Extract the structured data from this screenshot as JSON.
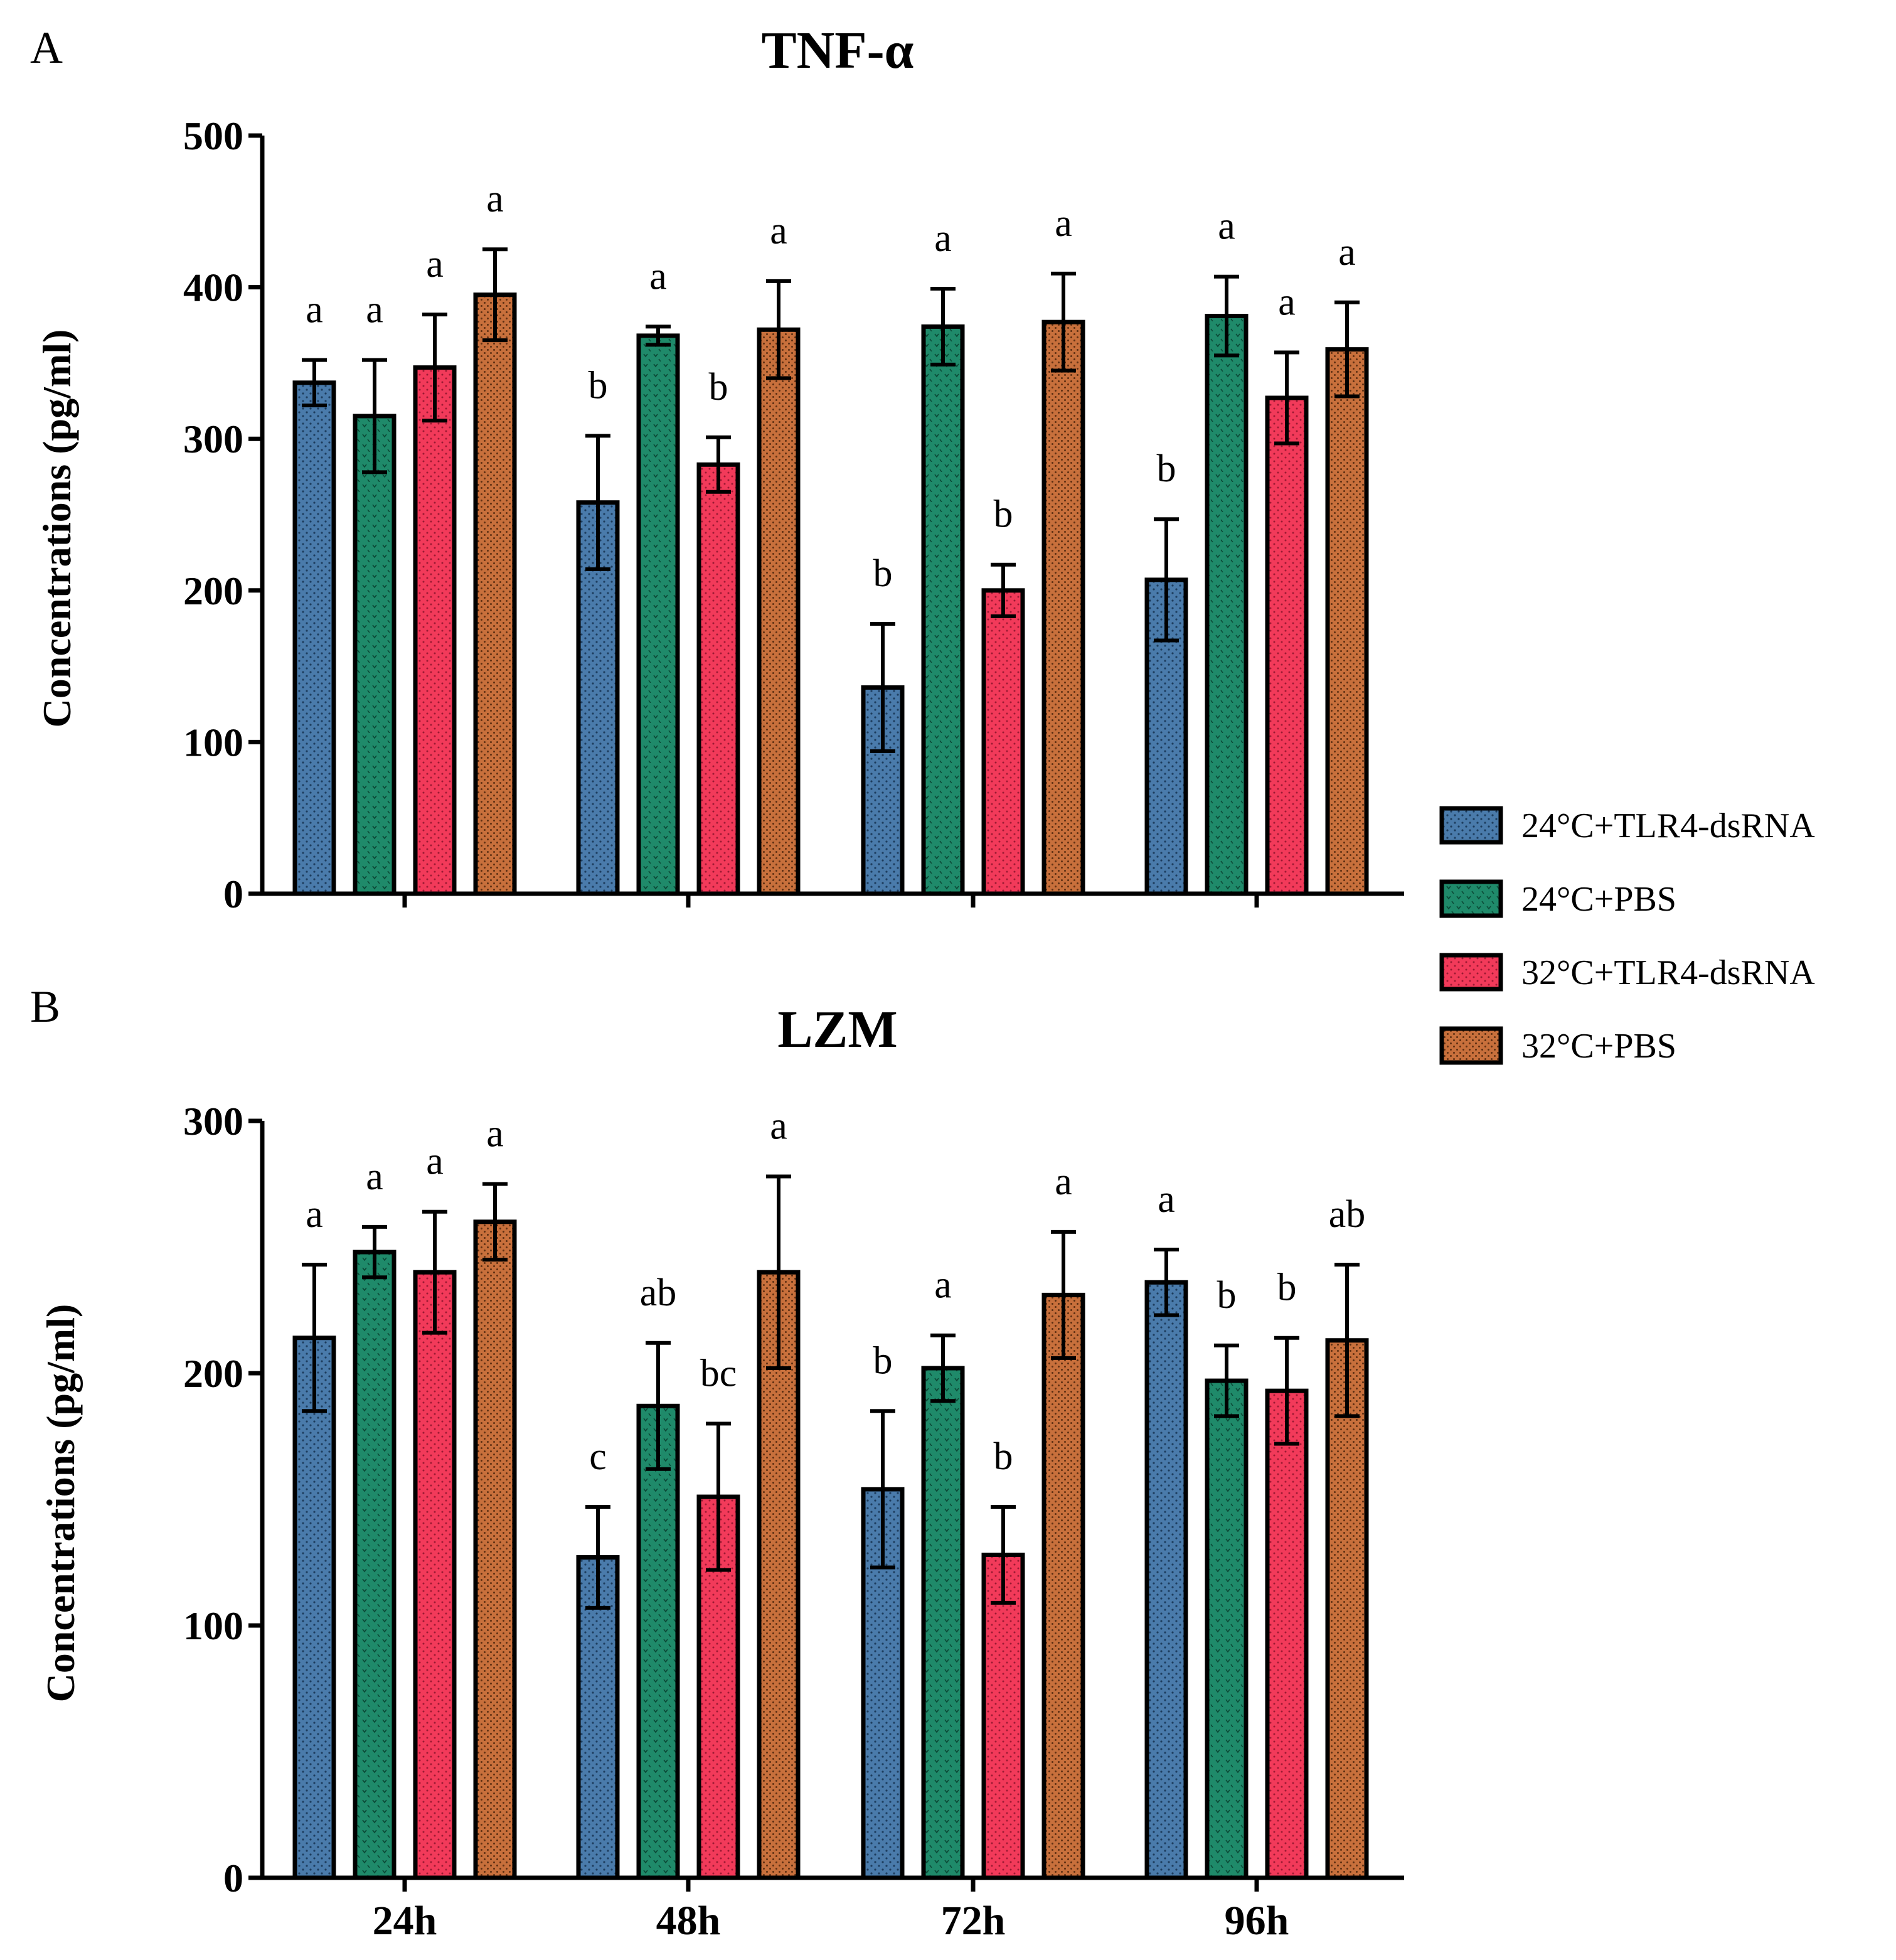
{
  "colors": {
    "blue": "#4a7bab",
    "green": "#1f8a6a",
    "red": "#f23a5a",
    "orange": "#c8703c"
  },
  "legend": [
    {
      "label": "24°C+TLR4-dsRNA",
      "color": "#4a7bab"
    },
    {
      "label": "24°C+PBS",
      "color": "#1f8a6a"
    },
    {
      "label": "32°C+TLR4-dsRNA",
      "color": "#f23a5a"
    },
    {
      "label": "32°C+PBS",
      "color": "#c8703c"
    }
  ],
  "chart_data": [
    {
      "panel": "A",
      "type": "bar",
      "title": "TNF-α",
      "ylabel": "Concentrations (pg/ml)",
      "xlabel": "",
      "ylim": [
        0,
        500
      ],
      "yticks": [
        0,
        100,
        200,
        300,
        400,
        500
      ],
      "categories": [
        "24h",
        "48h",
        "72h",
        "96h"
      ],
      "show_category_labels": false,
      "series": [
        {
          "name": "24°C+TLR4-dsRNA",
          "values": [
            337,
            258,
            136,
            207
          ],
          "errors": [
            15,
            44,
            42,
            40
          ],
          "letters": [
            "a",
            "b",
            "b",
            "b"
          ]
        },
        {
          "name": "24°C+PBS",
          "values": [
            315,
            368,
            374,
            381
          ],
          "errors": [
            37,
            6,
            25,
            26
          ],
          "letters": [
            "a",
            "a",
            "a",
            "a"
          ]
        },
        {
          "name": "32°C+TLR4-dsRNA",
          "values": [
            347,
            283,
            200,
            327
          ],
          "errors": [
            35,
            18,
            17,
            30
          ],
          "letters": [
            "a",
            "b",
            "b",
            "a"
          ]
        },
        {
          "name": "32°C+PBS",
          "values": [
            395,
            372,
            377,
            359
          ],
          "errors": [
            30,
            32,
            32,
            31
          ],
          "letters": [
            "a",
            "a",
            "a",
            "a"
          ]
        }
      ]
    },
    {
      "panel": "B",
      "type": "bar",
      "title": "LZM",
      "ylabel": "Concentrations (pg/ml)",
      "xlabel": "",
      "ylim": [
        0,
        300
      ],
      "yticks": [
        0,
        100,
        200,
        300
      ],
      "categories": [
        "24h",
        "48h",
        "72h",
        "96h"
      ],
      "show_category_labels": true,
      "series": [
        {
          "name": "24°C+TLR4-dsRNA",
          "values": [
            214,
            127,
            154,
            236
          ],
          "errors": [
            29,
            20,
            31,
            13
          ],
          "letters": [
            "a",
            "c",
            "b",
            "a"
          ]
        },
        {
          "name": "24°C+PBS",
          "values": [
            248,
            187,
            202,
            197
          ],
          "errors": [
            10,
            25,
            13,
            14
          ],
          "letters": [
            "a",
            "ab",
            "a",
            "b"
          ]
        },
        {
          "name": "32°C+TLR4-dsRNA",
          "values": [
            240,
            151,
            128,
            193
          ],
          "errors": [
            24,
            29,
            19,
            21
          ],
          "letters": [
            "a",
            "bc",
            "b",
            "b"
          ]
        },
        {
          "name": "32°C+PBS",
          "values": [
            260,
            240,
            231,
            213
          ],
          "errors": [
            15,
            38,
            25,
            30
          ],
          "letters": [
            "a",
            "a",
            "a",
            "ab"
          ]
        }
      ]
    }
  ]
}
